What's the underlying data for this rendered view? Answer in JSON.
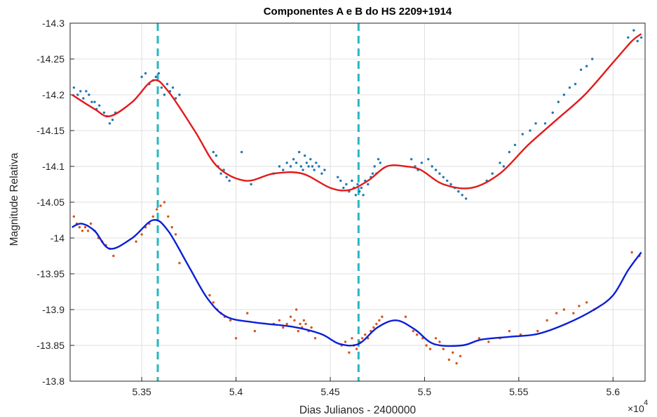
{
  "chart_data": {
    "type": "scatter",
    "title": "Componentes A e B do HS 2209+1914",
    "xlabel": "Dias Julianos - 2400000",
    "ylabel": "Magnitude Relativa",
    "x_exponent_label": "×10",
    "x_exponent_power": "4",
    "x_ticks": [
      "5.35",
      "5.4",
      "5.45",
      "5.5",
      "5.55",
      "5.6"
    ],
    "y_ticks": [
      "-14.3",
      "-14.25",
      "-14.2",
      "-14.15",
      "-14.1",
      "-14.05",
      "-14",
      "-13.95",
      "-13.9",
      "-13.85",
      "-13.8"
    ],
    "xlim": [
      53120,
      56170
    ],
    "ylim": [
      -14.3,
      -13.8
    ],
    "y_reversed": true,
    "grid": true,
    "vertical_lines": [
      {
        "x": 53585,
        "color": "#29b6c0",
        "style": "dashed"
      },
      {
        "x": 54650,
        "color": "#29b6c0",
        "style": "dashed"
      }
    ],
    "fits": [
      {
        "color": "#e31a1a",
        "x": [
          53130,
          53250,
          53330,
          53450,
          53560,
          53640,
          53780,
          53900,
          54050,
          54200,
          54350,
          54500,
          54600,
          54700,
          54800,
          54900,
          54980,
          55100,
          55250,
          55400,
          55550,
          55700,
          55850,
          56000,
          56100,
          56150
        ],
        "y": [
          -14.2,
          -14.18,
          -14.17,
          -14.19,
          -14.22,
          -14.205,
          -14.15,
          -14.1,
          -14.08,
          -14.09,
          -14.09,
          -14.07,
          -14.067,
          -14.08,
          -14.1,
          -14.1,
          -14.095,
          -14.075,
          -14.07,
          -14.09,
          -14.13,
          -14.165,
          -14.2,
          -14.245,
          -14.275,
          -14.285
        ]
      },
      {
        "color": "#0a1fd6",
        "x": [
          53130,
          53180,
          53250,
          53330,
          53450,
          53560,
          53640,
          53750,
          53850,
          53950,
          54100,
          54300,
          54450,
          54550,
          54650,
          54750,
          54850,
          54950,
          55050,
          55200,
          55300,
          55450,
          55600,
          55750,
          55900,
          56000,
          56080,
          56150
        ],
        "y": [
          -14.015,
          -14.02,
          -14.01,
          -13.985,
          -14.0,
          -14.025,
          -14.01,
          -13.96,
          -13.915,
          -13.89,
          -13.882,
          -13.876,
          -13.866,
          -13.852,
          -13.852,
          -13.875,
          -13.885,
          -13.872,
          -13.852,
          -13.85,
          -13.858,
          -13.862,
          -13.866,
          -13.88,
          -13.9,
          -13.92,
          -13.955,
          -13.98
        ]
      }
    ],
    "series": [
      {
        "color": "#1f77b4",
        "points": [
          [
            53140,
            -14.21
          ],
          [
            53160,
            -14.2
          ],
          [
            53175,
            -14.205
          ],
          [
            53190,
            -14.195
          ],
          [
            53205,
            -14.205
          ],
          [
            53220,
            -14.2
          ],
          [
            53235,
            -14.19
          ],
          [
            53250,
            -14.19
          ],
          [
            53260,
            -14.18
          ],
          [
            53275,
            -14.185
          ],
          [
            53300,
            -14.175
          ],
          [
            53315,
            -14.17
          ],
          [
            53330,
            -14.16
          ],
          [
            53345,
            -14.165
          ],
          [
            53360,
            -14.175
          ],
          [
            53500,
            -14.225
          ],
          [
            53520,
            -14.23
          ],
          [
            53540,
            -14.215
          ],
          [
            53560,
            -14.22
          ],
          [
            53575,
            -14.225
          ],
          [
            53590,
            -14.23
          ],
          [
            53605,
            -14.21
          ],
          [
            53620,
            -14.2
          ],
          [
            53635,
            -14.215
          ],
          [
            53650,
            -14.205
          ],
          [
            53665,
            -14.21
          ],
          [
            53680,
            -14.195
          ],
          [
            53700,
            -14.2
          ],
          [
            53880,
            -14.12
          ],
          [
            53895,
            -14.115
          ],
          [
            53905,
            -14.1
          ],
          [
            53920,
            -14.09
          ],
          [
            53935,
            -14.095
          ],
          [
            53950,
            -14.085
          ],
          [
            53965,
            -14.08
          ],
          [
            54030,
            -14.12
          ],
          [
            54080,
            -14.075
          ],
          [
            54200,
            -14.09
          ],
          [
            54230,
            -14.1
          ],
          [
            54250,
            -14.095
          ],
          [
            54270,
            -14.105
          ],
          [
            54290,
            -14.1
          ],
          [
            54305,
            -14.11
          ],
          [
            54320,
            -14.105
          ],
          [
            54335,
            -14.12
          ],
          [
            54345,
            -14.1
          ],
          [
            54355,
            -14.095
          ],
          [
            54365,
            -14.115
          ],
          [
            54375,
            -14.105
          ],
          [
            54385,
            -14.1
          ],
          [
            54395,
            -14.11
          ],
          [
            54405,
            -14.1
          ],
          [
            54415,
            -14.095
          ],
          [
            54425,
            -14.105
          ],
          [
            54440,
            -14.1
          ],
          [
            54455,
            -14.09
          ],
          [
            54470,
            -14.095
          ],
          [
            54540,
            -14.085
          ],
          [
            54555,
            -14.08
          ],
          [
            54570,
            -14.07
          ],
          [
            54585,
            -14.075
          ],
          [
            54600,
            -14.065
          ],
          [
            54615,
            -14.08
          ],
          [
            54625,
            -14.07
          ],
          [
            54635,
            -14.06
          ],
          [
            54645,
            -14.075
          ],
          [
            54655,
            -14.065
          ],
          [
            54665,
            -14.07
          ],
          [
            54675,
            -14.06
          ],
          [
            54685,
            -14.08
          ],
          [
            54700,
            -14.075
          ],
          [
            54715,
            -14.085
          ],
          [
            54725,
            -14.09
          ],
          [
            54735,
            -14.1
          ],
          [
            54745,
            -14.09
          ],
          [
            54755,
            -14.11
          ],
          [
            54765,
            -14.105
          ],
          [
            54930,
            -14.11
          ],
          [
            54950,
            -14.1
          ],
          [
            54965,
            -14.095
          ],
          [
            54985,
            -14.105
          ],
          [
            55020,
            -14.11
          ],
          [
            55040,
            -14.1
          ],
          [
            55060,
            -14.095
          ],
          [
            55080,
            -14.09
          ],
          [
            55100,
            -14.085
          ],
          [
            55120,
            -14.08
          ],
          [
            55140,
            -14.075
          ],
          [
            55160,
            -14.07
          ],
          [
            55180,
            -14.065
          ],
          [
            55200,
            -14.06
          ],
          [
            55220,
            -14.055
          ],
          [
            55330,
            -14.08
          ],
          [
            55360,
            -14.09
          ],
          [
            55400,
            -14.105
          ],
          [
            55420,
            -14.1
          ],
          [
            55450,
            -14.12
          ],
          [
            55480,
            -14.13
          ],
          [
            55520,
            -14.145
          ],
          [
            55560,
            -14.15
          ],
          [
            55590,
            -14.16
          ],
          [
            55640,
            -14.16
          ],
          [
            55680,
            -14.175
          ],
          [
            55710,
            -14.19
          ],
          [
            55740,
            -14.2
          ],
          [
            55770,
            -14.21
          ],
          [
            55800,
            -14.215
          ],
          [
            55830,
            -14.235
          ],
          [
            55860,
            -14.24
          ],
          [
            55890,
            -14.25
          ],
          [
            56080,
            -14.28
          ],
          [
            56110,
            -14.29
          ],
          [
            56130,
            -14.275
          ],
          [
            56150,
            -14.28
          ]
        ]
      },
      {
        "color": "#d95319",
        "points": [
          [
            53140,
            -14.03
          ],
          [
            53155,
            -14.02
          ],
          [
            53170,
            -14.015
          ],
          [
            53185,
            -14.01
          ],
          [
            53200,
            -14.015
          ],
          [
            53215,
            -14.01
          ],
          [
            53230,
            -14.02
          ],
          [
            53250,
            -14.01
          ],
          [
            53270,
            -14.0
          ],
          [
            53290,
            -13.995
          ],
          [
            53310,
            -13.99
          ],
          [
            53330,
            -13.985
          ],
          [
            53350,
            -13.975
          ],
          [
            53470,
            -13.995
          ],
          [
            53500,
            -14.005
          ],
          [
            53520,
            -14.015
          ],
          [
            53540,
            -14.02
          ],
          [
            53560,
            -14.03
          ],
          [
            53580,
            -14.04
          ],
          [
            53600,
            -14.045
          ],
          [
            53620,
            -14.05
          ],
          [
            53640,
            -14.03
          ],
          [
            53660,
            -14.015
          ],
          [
            53680,
            -14.005
          ],
          [
            53700,
            -13.965
          ],
          [
            53860,
            -13.92
          ],
          [
            53880,
            -13.91
          ],
          [
            53900,
            -13.9
          ],
          [
            53920,
            -13.895
          ],
          [
            53940,
            -13.89
          ],
          [
            53970,
            -13.885
          ],
          [
            54000,
            -13.86
          ],
          [
            54060,
            -13.895
          ],
          [
            54100,
            -13.87
          ],
          [
            54200,
            -13.88
          ],
          [
            54230,
            -13.885
          ],
          [
            54250,
            -13.875
          ],
          [
            54270,
            -13.88
          ],
          [
            54290,
            -13.89
          ],
          [
            54310,
            -13.885
          ],
          [
            54320,
            -13.9
          ],
          [
            54330,
            -13.87
          ],
          [
            54340,
            -13.88
          ],
          [
            54350,
            -13.875
          ],
          [
            54360,
            -13.885
          ],
          [
            54370,
            -13.88
          ],
          [
            54385,
            -13.87
          ],
          [
            54400,
            -13.875
          ],
          [
            54420,
            -13.86
          ],
          [
            54560,
            -13.85
          ],
          [
            54580,
            -13.855
          ],
          [
            54600,
            -13.84
          ],
          [
            54615,
            -13.86
          ],
          [
            54625,
            -13.85
          ],
          [
            54640,
            -13.845
          ],
          [
            54655,
            -13.855
          ],
          [
            54670,
            -13.86
          ],
          [
            54685,
            -13.865
          ],
          [
            54700,
            -13.86
          ],
          [
            54715,
            -13.87
          ],
          [
            54730,
            -13.875
          ],
          [
            54745,
            -13.88
          ],
          [
            54760,
            -13.885
          ],
          [
            54775,
            -13.89
          ],
          [
            54900,
            -13.89
          ],
          [
            54940,
            -13.87
          ],
          [
            54960,
            -13.865
          ],
          [
            54990,
            -13.86
          ],
          [
            55010,
            -13.85
          ],
          [
            55030,
            -13.845
          ],
          [
            55060,
            -13.86
          ],
          [
            55080,
            -13.855
          ],
          [
            55100,
            -13.845
          ],
          [
            55130,
            -13.83
          ],
          [
            55150,
            -13.84
          ],
          [
            55170,
            -13.825
          ],
          [
            55190,
            -13.835
          ],
          [
            55290,
            -13.86
          ],
          [
            55340,
            -13.855
          ],
          [
            55400,
            -13.86
          ],
          [
            55450,
            -13.87
          ],
          [
            55510,
            -13.865
          ],
          [
            55600,
            -13.87
          ],
          [
            55650,
            -13.885
          ],
          [
            55700,
            -13.895
          ],
          [
            55740,
            -13.9
          ],
          [
            55790,
            -13.895
          ],
          [
            55820,
            -13.905
          ],
          [
            55860,
            -13.91
          ],
          [
            55900,
            -13.9
          ],
          [
            56100,
            -13.98
          ],
          [
            56140,
            -13.975
          ]
        ]
      }
    ]
  }
}
